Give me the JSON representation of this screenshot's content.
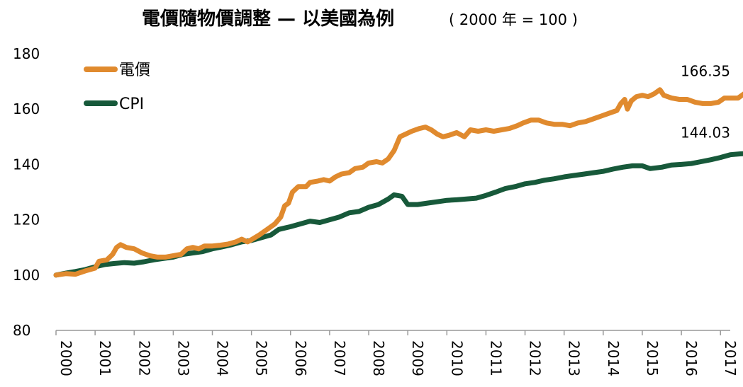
{
  "chart_data": {
    "type": "line",
    "title": "電價隨物價調整 — 以美國為例",
    "subtitle": "( 2000 年 = 100 )",
    "xlabel": "",
    "ylabel": "",
    "ylim": [
      80,
      180
    ],
    "yticks": [
      "80",
      "100",
      "120",
      "140",
      "160",
      "180"
    ],
    "xlim": [
      2000,
      2017.25
    ],
    "xticks": [
      "2000",
      "2001",
      "2002",
      "2003",
      "2004",
      "2005",
      "2006",
      "2007",
      "2008",
      "2009",
      "2010",
      "2011",
      "2012",
      "2013",
      "2014",
      "2015",
      "2016",
      "2017"
    ],
    "legend_position": "top-left",
    "series": [
      {
        "name": "電價",
        "color": "#E08A2E",
        "end_label": "166.35",
        "points": [
          [
            2000.0,
            100
          ],
          [
            2000.25,
            100.5
          ],
          [
            2000.5,
            100.3
          ],
          [
            2000.75,
            101.5
          ],
          [
            2001.0,
            102.5
          ],
          [
            2001.1,
            105
          ],
          [
            2001.3,
            105.5
          ],
          [
            2001.45,
            107.5
          ],
          [
            2001.55,
            110
          ],
          [
            2001.65,
            111
          ],
          [
            2001.8,
            110
          ],
          [
            2002.0,
            109.5
          ],
          [
            2002.2,
            108
          ],
          [
            2002.4,
            107
          ],
          [
            2002.6,
            106.5
          ],
          [
            2002.8,
            106.5
          ],
          [
            2003.0,
            107
          ],
          [
            2003.2,
            107.5
          ],
          [
            2003.35,
            109.5
          ],
          [
            2003.5,
            110
          ],
          [
            2003.65,
            109.5
          ],
          [
            2003.8,
            110.5
          ],
          [
            2004.0,
            110.5
          ],
          [
            2004.2,
            110.8
          ],
          [
            2004.4,
            111.2
          ],
          [
            2004.6,
            112
          ],
          [
            2004.75,
            113
          ],
          [
            2004.9,
            112
          ],
          [
            2005.0,
            112.8
          ],
          [
            2005.2,
            114.5
          ],
          [
            2005.4,
            116.5
          ],
          [
            2005.6,
            118.5
          ],
          [
            2005.75,
            121
          ],
          [
            2005.85,
            125
          ],
          [
            2005.95,
            126
          ],
          [
            2006.05,
            130
          ],
          [
            2006.2,
            132
          ],
          [
            2006.4,
            132
          ],
          [
            2006.5,
            133.5
          ],
          [
            2006.7,
            134
          ],
          [
            2006.85,
            134.5
          ],
          [
            2007.0,
            134
          ],
          [
            2007.15,
            135.5
          ],
          [
            2007.3,
            136.5
          ],
          [
            2007.5,
            137
          ],
          [
            2007.65,
            138.5
          ],
          [
            2007.85,
            139
          ],
          [
            2008.0,
            140.5
          ],
          [
            2008.2,
            141
          ],
          [
            2008.35,
            140.5
          ],
          [
            2008.5,
            142
          ],
          [
            2008.65,
            145
          ],
          [
            2008.8,
            150
          ],
          [
            2008.95,
            151
          ],
          [
            2009.1,
            152
          ],
          [
            2009.3,
            153
          ],
          [
            2009.45,
            153.5
          ],
          [
            2009.6,
            152.5
          ],
          [
            2009.75,
            151
          ],
          [
            2009.9,
            150
          ],
          [
            2010.05,
            150.5
          ],
          [
            2010.25,
            151.5
          ],
          [
            2010.45,
            150
          ],
          [
            2010.6,
            152.5
          ],
          [
            2010.8,
            152
          ],
          [
            2011.0,
            152.5
          ],
          [
            2011.2,
            152
          ],
          [
            2011.4,
            152.5
          ],
          [
            2011.6,
            153
          ],
          [
            2011.8,
            154
          ],
          [
            2011.95,
            155
          ],
          [
            2012.15,
            156
          ],
          [
            2012.35,
            156
          ],
          [
            2012.55,
            155
          ],
          [
            2012.75,
            154.5
          ],
          [
            2012.95,
            154.5
          ],
          [
            2013.15,
            154
          ],
          [
            2013.35,
            155
          ],
          [
            2013.55,
            155.5
          ],
          [
            2013.75,
            156.5
          ],
          [
            2013.95,
            157.5
          ],
          [
            2014.15,
            158.5
          ],
          [
            2014.35,
            159.5
          ],
          [
            2014.45,
            162
          ],
          [
            2014.55,
            163.5
          ],
          [
            2014.62,
            160
          ],
          [
            2014.72,
            163
          ],
          [
            2014.85,
            164.5
          ],
          [
            2015.0,
            165
          ],
          [
            2015.15,
            164.5
          ],
          [
            2015.3,
            165.5
          ],
          [
            2015.45,
            167
          ],
          [
            2015.55,
            165
          ],
          [
            2015.75,
            164
          ],
          [
            2015.95,
            163.5
          ],
          [
            2016.15,
            163.5
          ],
          [
            2016.35,
            162.5
          ],
          [
            2016.55,
            162
          ],
          [
            2016.75,
            162
          ],
          [
            2016.95,
            162.5
          ],
          [
            2017.1,
            164
          ],
          [
            2017.3,
            164
          ],
          [
            2017.45,
            164
          ],
          [
            2017.6,
            165.5
          ],
          [
            2017.75,
            166.35
          ]
        ]
      },
      {
        "name": "CPI",
        "color": "#17593A",
        "end_label": "144.03",
        "points": [
          [
            2000.0,
            100
          ],
          [
            2000.25,
            100.7
          ],
          [
            2000.5,
            101.3
          ],
          [
            2000.75,
            102
          ],
          [
            2001.0,
            103
          ],
          [
            2001.25,
            103.8
          ],
          [
            2001.5,
            104.2
          ],
          [
            2001.75,
            104.5
          ],
          [
            2002.0,
            104.3
          ],
          [
            2002.25,
            104.8
          ],
          [
            2002.5,
            105.5
          ],
          [
            2002.75,
            106
          ],
          [
            2003.0,
            106.5
          ],
          [
            2003.25,
            107.5
          ],
          [
            2003.5,
            108
          ],
          [
            2003.75,
            108.5
          ],
          [
            2004.0,
            109.5
          ],
          [
            2004.25,
            110.2
          ],
          [
            2004.5,
            111
          ],
          [
            2004.75,
            112
          ],
          [
            2005.0,
            112.5
          ],
          [
            2005.25,
            113.5
          ],
          [
            2005.5,
            114.5
          ],
          [
            2005.7,
            116.5
          ],
          [
            2005.85,
            117
          ],
          [
            2006.0,
            117.5
          ],
          [
            2006.25,
            118.5
          ],
          [
            2006.5,
            119.5
          ],
          [
            2006.75,
            119
          ],
          [
            2007.0,
            120
          ],
          [
            2007.25,
            121
          ],
          [
            2007.5,
            122.5
          ],
          [
            2007.75,
            123
          ],
          [
            2008.0,
            124.5
          ],
          [
            2008.25,
            125.5
          ],
          [
            2008.5,
            127.5
          ],
          [
            2008.65,
            129
          ],
          [
            2008.85,
            128.5
          ],
          [
            2009.0,
            125.5
          ],
          [
            2009.25,
            125.5
          ],
          [
            2009.5,
            126
          ],
          [
            2009.75,
            126.5
          ],
          [
            2010.0,
            127
          ],
          [
            2010.25,
            127.2
          ],
          [
            2010.5,
            127.5
          ],
          [
            2010.75,
            127.8
          ],
          [
            2011.0,
            128.8
          ],
          [
            2011.25,
            130
          ],
          [
            2011.5,
            131.3
          ],
          [
            2011.75,
            132
          ],
          [
            2012.0,
            133
          ],
          [
            2012.25,
            133.5
          ],
          [
            2012.5,
            134.3
          ],
          [
            2012.75,
            134.8
          ],
          [
            2013.0,
            135.5
          ],
          [
            2013.25,
            136
          ],
          [
            2013.5,
            136.5
          ],
          [
            2013.75,
            137
          ],
          [
            2014.0,
            137.5
          ],
          [
            2014.25,
            138.3
          ],
          [
            2014.5,
            139
          ],
          [
            2014.75,
            139.5
          ],
          [
            2015.0,
            139.5
          ],
          [
            2015.2,
            138.5
          ],
          [
            2015.5,
            139
          ],
          [
            2015.75,
            139.8
          ],
          [
            2016.0,
            140
          ],
          [
            2016.25,
            140.3
          ],
          [
            2016.5,
            141
          ],
          [
            2016.75,
            141.7
          ],
          [
            2017.0,
            142.5
          ],
          [
            2017.25,
            143.5
          ],
          [
            2017.5,
            143.8
          ],
          [
            2017.75,
            144.03
          ]
        ]
      }
    ]
  }
}
